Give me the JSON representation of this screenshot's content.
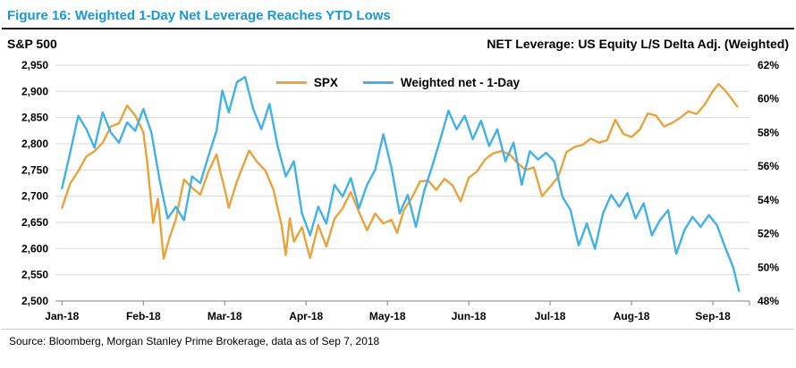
{
  "figure": {
    "title": "Figure 16: Weighted 1-Day Net Leverage Reaches YTD Lows",
    "left_axis_title": "S&P 500",
    "right_axis_title": "NET Leverage: US Equity L/S Delta Adj. (Weighted)",
    "source": "Source: Bloomberg, Morgan Stanley Prime Brokerage, data as of Sep 7, 2018"
  },
  "colors": {
    "title_blue": "#1899D6",
    "grid": "#D9D9D9",
    "axis_line": "#7F7F7F",
    "spx_orange": "#E8A33C",
    "net_blue": "#41B1E6"
  },
  "chart_data": {
    "type": "line",
    "title": "Weighted 1-Day Net Leverage Reaches YTD Lows",
    "grid": "horizontal",
    "legend_position": "top-center-inside",
    "x_tick_labels": [
      "Jan-18",
      "Feb-18",
      "Mar-18",
      "Apr-18",
      "May-18",
      "Jun-18",
      "Jul-18",
      "Aug-18",
      "Sep-18"
    ],
    "x_range": [
      -0.08,
      8.45
    ],
    "left_axis": {
      "title": "S&P 500",
      "min": 2500,
      "max": 2950,
      "step": 50,
      "tick_labels": [
        "2,500",
        "2,550",
        "2,600",
        "2,650",
        "2,700",
        "2,750",
        "2,800",
        "2,850",
        "2,900",
        "2,950"
      ]
    },
    "right_axis": {
      "title": "NET Leverage: US Equity L/S Delta Adj. (Weighted)",
      "min": 48,
      "max": 62,
      "step": 2,
      "tick_labels": [
        "48%",
        "50%",
        "52%",
        "54%",
        "56%",
        "58%",
        "60%",
        "62%"
      ]
    },
    "series": [
      {
        "id": "spx",
        "name": "SPX",
        "axis": "left",
        "color": "#E8A33C",
        "points": [
          [
            0.0,
            2678
          ],
          [
            0.1,
            2724
          ],
          [
            0.2,
            2748
          ],
          [
            0.3,
            2776
          ],
          [
            0.4,
            2786
          ],
          [
            0.5,
            2802
          ],
          [
            0.6,
            2833
          ],
          [
            0.7,
            2839
          ],
          [
            0.8,
            2873
          ],
          [
            0.9,
            2854
          ],
          [
            1.0,
            2822
          ],
          [
            1.05,
            2762
          ],
          [
            1.12,
            2649
          ],
          [
            1.18,
            2695
          ],
          [
            1.25,
            2581
          ],
          [
            1.32,
            2620
          ],
          [
            1.4,
            2656
          ],
          [
            1.5,
            2732
          ],
          [
            1.6,
            2716
          ],
          [
            1.7,
            2703
          ],
          [
            1.8,
            2747
          ],
          [
            1.9,
            2780
          ],
          [
            1.95,
            2744
          ],
          [
            2.0,
            2714
          ],
          [
            2.05,
            2678
          ],
          [
            2.15,
            2728
          ],
          [
            2.3,
            2787
          ],
          [
            2.4,
            2765
          ],
          [
            2.5,
            2749
          ],
          [
            2.6,
            2712
          ],
          [
            2.7,
            2644
          ],
          [
            2.75,
            2588
          ],
          [
            2.8,
            2658
          ],
          [
            2.85,
            2613
          ],
          [
            2.95,
            2641
          ],
          [
            3.05,
            2582
          ],
          [
            3.15,
            2645
          ],
          [
            3.25,
            2604
          ],
          [
            3.35,
            2657
          ],
          [
            3.45,
            2677
          ],
          [
            3.55,
            2708
          ],
          [
            3.65,
            2670
          ],
          [
            3.75,
            2635
          ],
          [
            3.85,
            2667
          ],
          [
            3.95,
            2648
          ],
          [
            4.05,
            2655
          ],
          [
            4.12,
            2630
          ],
          [
            4.2,
            2673
          ],
          [
            4.3,
            2697
          ],
          [
            4.4,
            2728
          ],
          [
            4.5,
            2730
          ],
          [
            4.6,
            2712
          ],
          [
            4.7,
            2733
          ],
          [
            4.8,
            2721
          ],
          [
            4.9,
            2690
          ],
          [
            5.0,
            2735
          ],
          [
            5.1,
            2747
          ],
          [
            5.2,
            2770
          ],
          [
            5.3,
            2782
          ],
          [
            5.4,
            2786
          ],
          [
            5.5,
            2780
          ],
          [
            5.6,
            2763
          ],
          [
            5.7,
            2750
          ],
          [
            5.8,
            2755
          ],
          [
            5.9,
            2700
          ],
          [
            6.0,
            2718
          ],
          [
            6.1,
            2737
          ],
          [
            6.2,
            2784
          ],
          [
            6.3,
            2794
          ],
          [
            6.4,
            2798
          ],
          [
            6.5,
            2810
          ],
          [
            6.6,
            2802
          ],
          [
            6.7,
            2807
          ],
          [
            6.8,
            2846
          ],
          [
            6.9,
            2819
          ],
          [
            7.0,
            2813
          ],
          [
            7.1,
            2827
          ],
          [
            7.2,
            2858
          ],
          [
            7.3,
            2854
          ],
          [
            7.4,
            2833
          ],
          [
            7.5,
            2840
          ],
          [
            7.6,
            2850
          ],
          [
            7.7,
            2862
          ],
          [
            7.8,
            2857
          ],
          [
            7.9,
            2875
          ],
          [
            8.0,
            2901
          ],
          [
            8.07,
            2914
          ],
          [
            8.15,
            2902
          ],
          [
            8.22,
            2888
          ],
          [
            8.3,
            2871
          ]
        ]
      },
      {
        "id": "weighted-net",
        "name": "Weighted net - 1-Day",
        "axis": "right",
        "color": "#41B1E6",
        "points": [
          [
            0.0,
            54.7
          ],
          [
            0.1,
            56.8
          ],
          [
            0.2,
            59.0
          ],
          [
            0.3,
            58.2
          ],
          [
            0.4,
            57.1
          ],
          [
            0.5,
            59.2
          ],
          [
            0.6,
            58.0
          ],
          [
            0.7,
            57.4
          ],
          [
            0.8,
            58.6
          ],
          [
            0.9,
            58.1
          ],
          [
            1.0,
            59.4
          ],
          [
            1.1,
            58.0
          ],
          [
            1.2,
            55.2
          ],
          [
            1.3,
            52.9
          ],
          [
            1.4,
            53.6
          ],
          [
            1.5,
            52.8
          ],
          [
            1.6,
            55.4
          ],
          [
            1.7,
            55.0
          ],
          [
            1.8,
            56.6
          ],
          [
            1.9,
            58.1
          ],
          [
            1.97,
            60.5
          ],
          [
            2.05,
            59.2
          ],
          [
            2.15,
            61.0
          ],
          [
            2.25,
            61.3
          ],
          [
            2.35,
            59.4
          ],
          [
            2.45,
            58.2
          ],
          [
            2.55,
            59.7
          ],
          [
            2.65,
            57.2
          ],
          [
            2.75,
            55.4
          ],
          [
            2.85,
            56.3
          ],
          [
            2.95,
            53.2
          ],
          [
            3.05,
            51.9
          ],
          [
            3.15,
            53.6
          ],
          [
            3.25,
            52.6
          ],
          [
            3.35,
            54.9
          ],
          [
            3.45,
            54.2
          ],
          [
            3.55,
            55.3
          ],
          [
            3.65,
            53.5
          ],
          [
            3.75,
            54.9
          ],
          [
            3.85,
            55.8
          ],
          [
            3.95,
            57.9
          ],
          [
            4.05,
            55.9
          ],
          [
            4.15,
            53.2
          ],
          [
            4.25,
            54.3
          ],
          [
            4.35,
            52.4
          ],
          [
            4.45,
            54.5
          ],
          [
            4.55,
            56.0
          ],
          [
            4.65,
            57.6
          ],
          [
            4.75,
            59.3
          ],
          [
            4.85,
            58.2
          ],
          [
            4.95,
            59.0
          ],
          [
            5.05,
            57.6
          ],
          [
            5.15,
            58.7
          ],
          [
            5.25,
            57.2
          ],
          [
            5.35,
            58.2
          ],
          [
            5.45,
            56.3
          ],
          [
            5.55,
            57.4
          ],
          [
            5.65,
            54.9
          ],
          [
            5.75,
            56.9
          ],
          [
            5.85,
            56.4
          ],
          [
            5.95,
            56.8
          ],
          [
            6.05,
            56.3
          ],
          [
            6.15,
            54.2
          ],
          [
            6.25,
            53.4
          ],
          [
            6.35,
            51.3
          ],
          [
            6.45,
            52.6
          ],
          [
            6.55,
            51.1
          ],
          [
            6.65,
            53.2
          ],
          [
            6.75,
            54.3
          ],
          [
            6.85,
            53.6
          ],
          [
            6.95,
            54.4
          ],
          [
            7.05,
            52.9
          ],
          [
            7.15,
            53.8
          ],
          [
            7.25,
            51.9
          ],
          [
            7.35,
            52.8
          ],
          [
            7.45,
            53.4
          ],
          [
            7.55,
            50.8
          ],
          [
            7.65,
            52.2
          ],
          [
            7.75,
            53.0
          ],
          [
            7.85,
            52.4
          ],
          [
            7.95,
            53.1
          ],
          [
            8.05,
            52.5
          ],
          [
            8.15,
            51.2
          ],
          [
            8.25,
            50.0
          ],
          [
            8.32,
            48.6
          ]
        ]
      }
    ]
  }
}
